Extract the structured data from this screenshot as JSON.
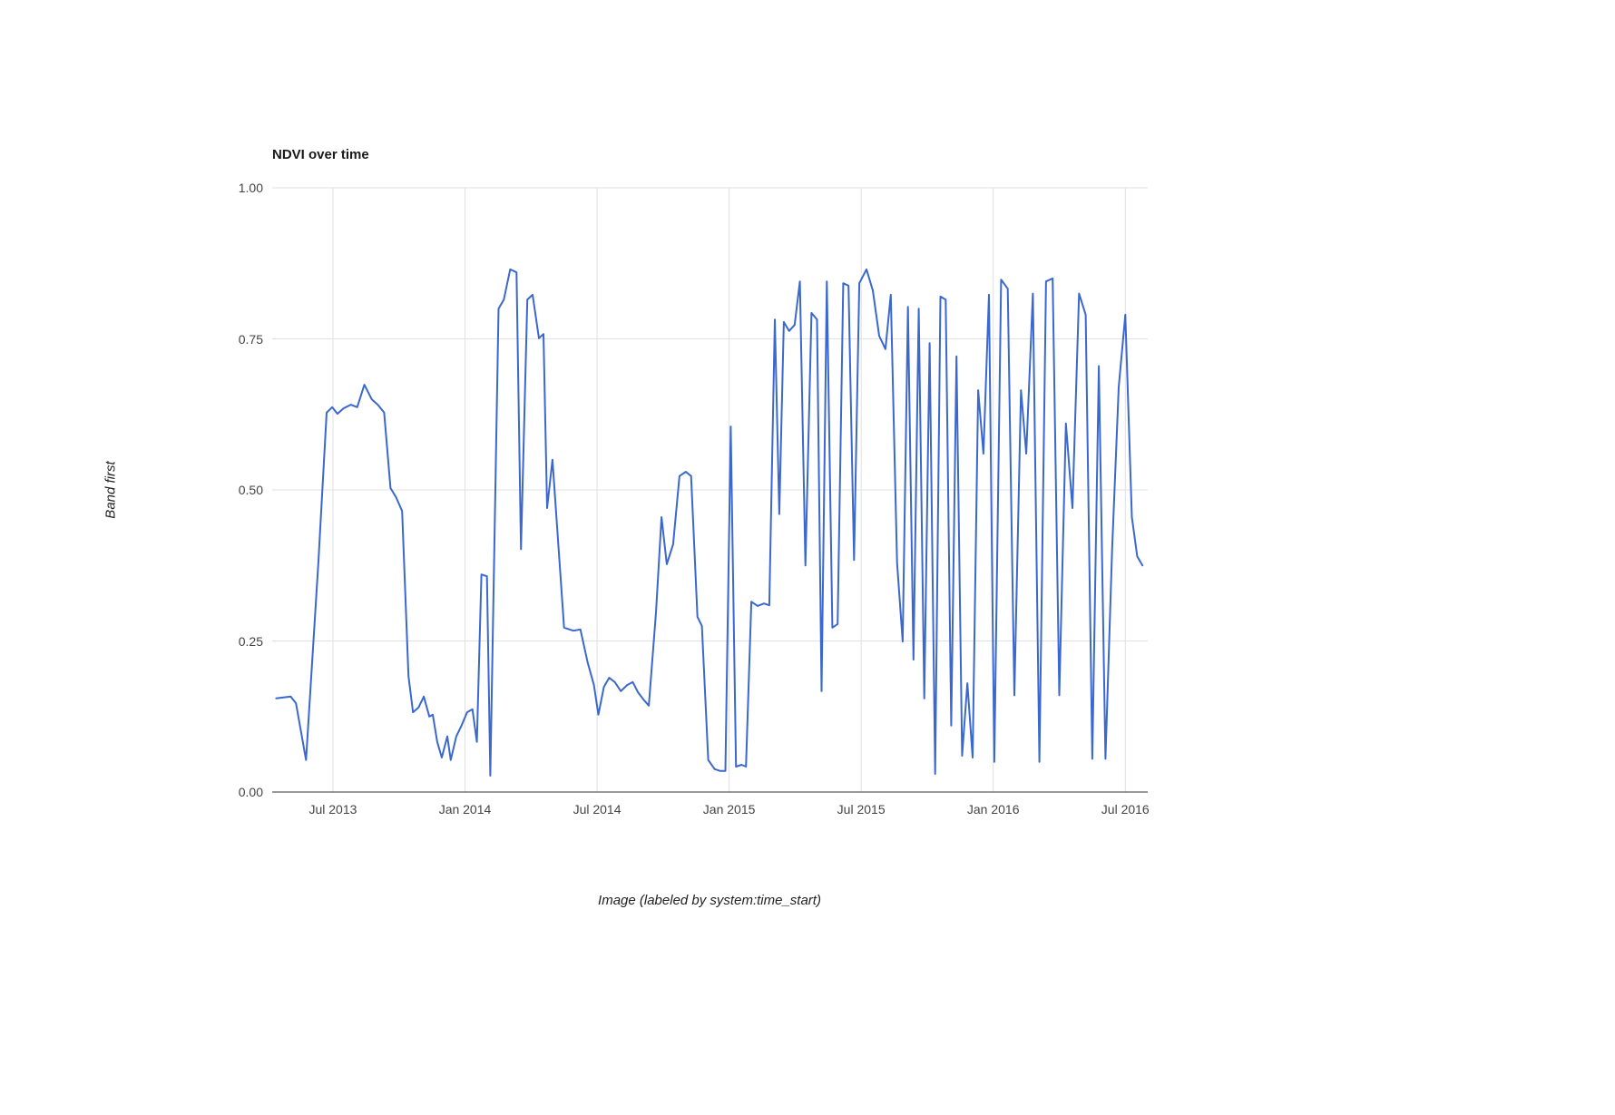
{
  "chart_data": {
    "type": "line",
    "title": "NDVI over time",
    "xlabel": "Image (labeled by system:time_start)",
    "ylabel": "Band first",
    "legend": "none",
    "grid": true,
    "line_color": "#3b68cf",
    "gridline_color": "#e0e0e0",
    "baseline_color": "#333333",
    "ylim": [
      0,
      1
    ],
    "x_domain": [
      2013.27,
      2016.585
    ],
    "yticks": [
      {
        "pos": 0.0,
        "label": "0.00"
      },
      {
        "pos": 0.25,
        "label": "0.25"
      },
      {
        "pos": 0.5,
        "label": "0.50"
      },
      {
        "pos": 0.75,
        "label": "0.75"
      },
      {
        "pos": 1.0,
        "label": "1.00"
      }
    ],
    "xticks": [
      {
        "pos": 2013.5,
        "label": "Jul 2013"
      },
      {
        "pos": 2014.0,
        "label": "Jan 2014"
      },
      {
        "pos": 2014.5,
        "label": "Jul 2014"
      },
      {
        "pos": 2015.0,
        "label": "Jan 2015"
      },
      {
        "pos": 2015.5,
        "label": "Jul 2015"
      },
      {
        "pos": 2016.0,
        "label": "Jan 2016"
      },
      {
        "pos": 2016.5,
        "label": "Jul 2016"
      }
    ],
    "series": [
      {
        "name": "first",
        "points": [
          [
            2013.285,
            0.155
          ],
          [
            2013.34,
            0.158
          ],
          [
            2013.36,
            0.147
          ],
          [
            2013.398,
            0.053
          ],
          [
            2013.445,
            0.38
          ],
          [
            2013.476,
            0.628
          ],
          [
            2013.497,
            0.637
          ],
          [
            2013.517,
            0.626
          ],
          [
            2013.54,
            0.635
          ],
          [
            2013.568,
            0.641
          ],
          [
            2013.592,
            0.637
          ],
          [
            2013.619,
            0.674
          ],
          [
            2013.647,
            0.65
          ],
          [
            2013.67,
            0.641
          ],
          [
            2013.694,
            0.628
          ],
          [
            2013.718,
            0.503
          ],
          [
            2013.739,
            0.488
          ],
          [
            2013.762,
            0.465
          ],
          [
            2013.786,
            0.192
          ],
          [
            2013.803,
            0.132
          ],
          [
            2013.824,
            0.14
          ],
          [
            2013.844,
            0.158
          ],
          [
            2013.865,
            0.125
          ],
          [
            2013.878,
            0.128
          ],
          [
            2013.895,
            0.083
          ],
          [
            2013.912,
            0.057
          ],
          [
            2013.933,
            0.092
          ],
          [
            2013.946,
            0.053
          ],
          [
            2013.967,
            0.092
          ],
          [
            2013.987,
            0.11
          ],
          [
            2014.008,
            0.132
          ],
          [
            2014.028,
            0.137
          ],
          [
            2014.045,
            0.083
          ],
          [
            2014.062,
            0.36
          ],
          [
            2014.083,
            0.357
          ],
          [
            2014.096,
            0.027
          ],
          [
            2014.127,
            0.8
          ],
          [
            2014.147,
            0.815
          ],
          [
            2014.171,
            0.865
          ],
          [
            2014.195,
            0.86
          ],
          [
            2014.212,
            0.402
          ],
          [
            2014.236,
            0.815
          ],
          [
            2014.256,
            0.823
          ],
          [
            2014.28,
            0.751
          ],
          [
            2014.297,
            0.758
          ],
          [
            2014.311,
            0.47
          ],
          [
            2014.331,
            0.55
          ],
          [
            2014.375,
            0.272
          ],
          [
            2014.41,
            0.267
          ],
          [
            2014.437,
            0.269
          ],
          [
            2014.464,
            0.215
          ],
          [
            2014.488,
            0.177
          ],
          [
            2014.505,
            0.128
          ],
          [
            2014.526,
            0.174
          ],
          [
            2014.546,
            0.189
          ],
          [
            2014.567,
            0.182
          ],
          [
            2014.59,
            0.167
          ],
          [
            2014.614,
            0.177
          ],
          [
            2014.635,
            0.182
          ],
          [
            2014.655,
            0.165
          ],
          [
            2014.676,
            0.153
          ],
          [
            2014.696,
            0.143
          ],
          [
            2014.723,
            0.297
          ],
          [
            2014.744,
            0.455
          ],
          [
            2014.764,
            0.377
          ],
          [
            2014.788,
            0.41
          ],
          [
            2014.812,
            0.523
          ],
          [
            2014.836,
            0.53
          ],
          [
            2014.856,
            0.523
          ],
          [
            2014.88,
            0.29
          ],
          [
            2014.897,
            0.275
          ],
          [
            2014.921,
            0.053
          ],
          [
            2014.945,
            0.038
          ],
          [
            2014.965,
            0.035
          ],
          [
            2014.986,
            0.035
          ],
          [
            2015.006,
            0.605
          ],
          [
            2015.026,
            0.042
          ],
          [
            2015.047,
            0.045
          ],
          [
            2015.064,
            0.042
          ],
          [
            2015.084,
            0.315
          ],
          [
            2015.108,
            0.308
          ],
          [
            2015.132,
            0.312
          ],
          [
            2015.152,
            0.309
          ],
          [
            2015.173,
            0.782
          ],
          [
            2015.19,
            0.46
          ],
          [
            2015.207,
            0.778
          ],
          [
            2015.227,
            0.763
          ],
          [
            2015.248,
            0.773
          ],
          [
            2015.268,
            0.845
          ],
          [
            2015.289,
            0.375
          ],
          [
            2015.312,
            0.793
          ],
          [
            2015.333,
            0.782
          ],
          [
            2015.35,
            0.167
          ],
          [
            2015.37,
            0.845
          ],
          [
            2015.391,
            0.272
          ],
          [
            2015.411,
            0.278
          ],
          [
            2015.432,
            0.842
          ],
          [
            2015.452,
            0.838
          ],
          [
            2015.473,
            0.384
          ],
          [
            2015.493,
            0.842
          ],
          [
            2015.52,
            0.865
          ],
          [
            2015.544,
            0.83
          ],
          [
            2015.568,
            0.755
          ],
          [
            2015.592,
            0.733
          ],
          [
            2015.612,
            0.823
          ],
          [
            2015.636,
            0.38
          ],
          [
            2015.657,
            0.249
          ],
          [
            2015.677,
            0.803
          ],
          [
            2015.698,
            0.219
          ],
          [
            2015.718,
            0.8
          ],
          [
            2015.739,
            0.155
          ],
          [
            2015.759,
            0.743
          ],
          [
            2015.78,
            0.03
          ],
          [
            2015.8,
            0.82
          ],
          [
            2015.82,
            0.815
          ],
          [
            2015.841,
            0.11
          ],
          [
            2015.861,
            0.721
          ],
          [
            2015.882,
            0.06
          ],
          [
            2015.902,
            0.18
          ],
          [
            2015.922,
            0.057
          ],
          [
            2015.943,
            0.665
          ],
          [
            2015.963,
            0.56
          ],
          [
            2015.984,
            0.823
          ],
          [
            2016.004,
            0.05
          ],
          [
            2016.03,
            0.848
          ],
          [
            2016.055,
            0.833
          ],
          [
            2016.08,
            0.16
          ],
          [
            2016.105,
            0.665
          ],
          [
            2016.125,
            0.56
          ],
          [
            2016.15,
            0.825
          ],
          [
            2016.175,
            0.05
          ],
          [
            2016.2,
            0.845
          ],
          [
            2016.225,
            0.85
          ],
          [
            2016.25,
            0.16
          ],
          [
            2016.275,
            0.61
          ],
          [
            2016.3,
            0.47
          ],
          [
            2016.325,
            0.825
          ],
          [
            2016.35,
            0.79
          ],
          [
            2016.375,
            0.055
          ],
          [
            2016.4,
            0.705
          ],
          [
            2016.425,
            0.055
          ],
          [
            2016.45,
            0.4
          ],
          [
            2016.475,
            0.67
          ],
          [
            2016.5,
            0.79
          ],
          [
            2016.525,
            0.455
          ],
          [
            2016.545,
            0.39
          ],
          [
            2016.565,
            0.375
          ]
        ]
      }
    ]
  }
}
